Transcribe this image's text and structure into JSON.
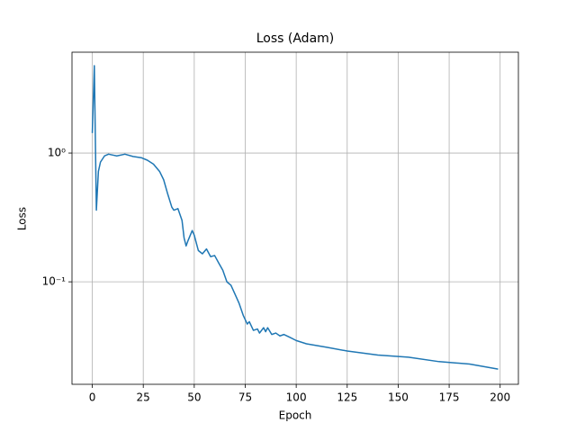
{
  "chart_data": {
    "type": "line",
    "title": "Loss (Adam)",
    "xlabel": "Epoch",
    "ylabel": "Loss",
    "x": [
      0,
      1,
      2,
      3,
      4,
      6,
      8,
      12,
      16,
      20,
      24,
      27,
      30,
      33,
      35,
      37,
      39,
      40,
      42,
      44,
      45,
      46,
      47,
      49,
      50,
      52,
      54,
      56,
      58,
      60,
      62,
      64,
      66,
      68,
      70,
      72,
      74,
      76,
      77,
      79,
      81,
      82,
      84,
      85,
      86,
      88,
      90,
      92,
      94,
      97,
      100,
      105,
      115,
      125,
      140,
      155,
      170,
      185,
      199
    ],
    "series": [
      {
        "name": "Loss",
        "color": "#1f77b4",
        "values": [
          1.43,
          4.77,
          0.36,
          0.72,
          0.85,
          0.95,
          0.98,
          0.95,
          0.98,
          0.94,
          0.92,
          0.88,
          0.82,
          0.72,
          0.62,
          0.48,
          0.38,
          0.36,
          0.37,
          0.3,
          0.22,
          0.19,
          0.21,
          0.25,
          0.23,
          0.175,
          0.165,
          0.18,
          0.157,
          0.16,
          0.14,
          0.123,
          0.1,
          0.094,
          0.08,
          0.068,
          0.055,
          0.047,
          0.049,
          0.042,
          0.043,
          0.04,
          0.044,
          0.041,
          0.044,
          0.039,
          0.04,
          0.038,
          0.039,
          0.037,
          0.035,
          0.033,
          0.031,
          0.029,
          0.027,
          0.026,
          0.024,
          0.023,
          0.021
        ]
      }
    ],
    "xlim": [
      -9.95,
      208.95
    ],
    "xticks": [
      0,
      25,
      50,
      75,
      100,
      125,
      150,
      175,
      200
    ],
    "ylim": [
      0.016,
      6.07
    ],
    "yticks": [
      {
        "value": 1,
        "label": "10⁰"
      },
      {
        "value": 0.1,
        "label": "10⁻¹"
      }
    ],
    "yscale": "log",
    "grid": true
  }
}
